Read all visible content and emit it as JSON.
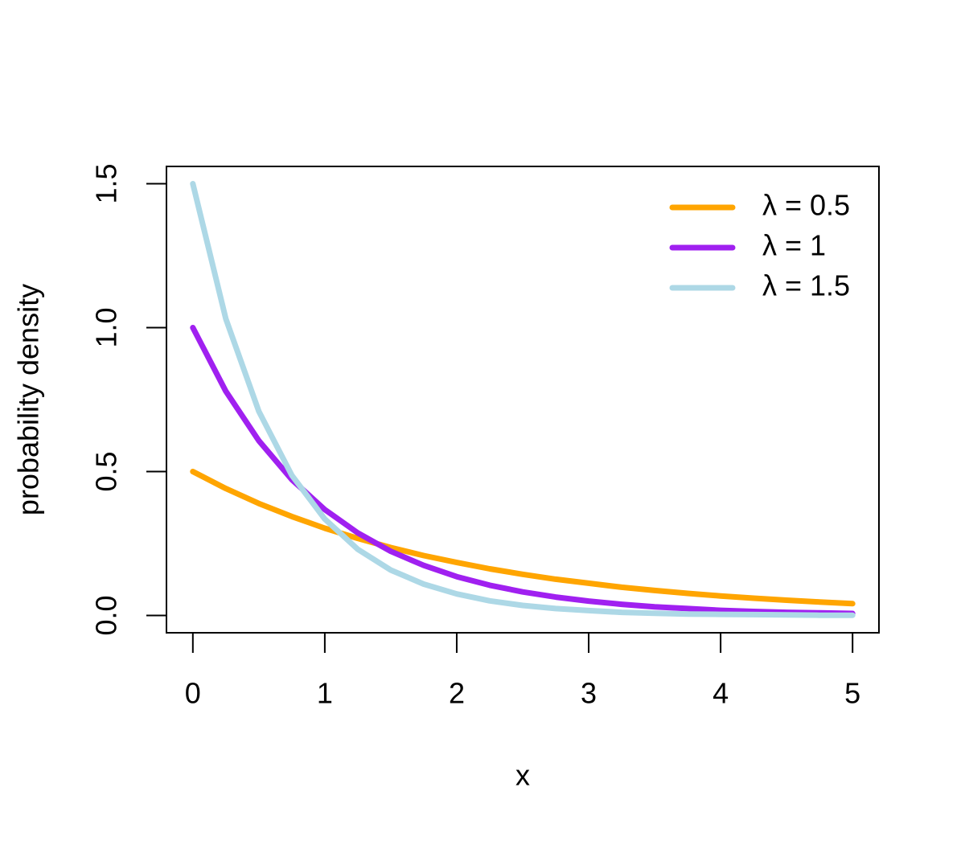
{
  "chart_data": {
    "type": "line",
    "x_label": "x",
    "y_label": "probability density",
    "x": [
      0,
      0.25,
      0.5,
      0.75,
      1,
      1.25,
      1.5,
      1.75,
      2,
      2.25,
      2.5,
      2.75,
      3,
      3.25,
      3.5,
      3.75,
      4,
      4.25,
      4.5,
      4.75,
      5
    ],
    "series": [
      {
        "name": "λ = 0.5",
        "color": "#ffa500",
        "values": [
          0.5,
          0.441,
          0.389,
          0.344,
          0.303,
          0.268,
          0.236,
          0.208,
          0.184,
          0.162,
          0.143,
          0.126,
          0.112,
          0.098,
          0.087,
          0.077,
          0.068,
          0.06,
          0.053,
          0.047,
          0.041
        ]
      },
      {
        "name": "λ = 1",
        "color": "#a020f0",
        "values": [
          1,
          0.779,
          0.607,
          0.472,
          0.368,
          0.287,
          0.223,
          0.174,
          0.135,
          0.105,
          0.082,
          0.064,
          0.05,
          0.039,
          0.03,
          0.024,
          0.018,
          0.014,
          0.011,
          0.009,
          0.007
        ]
      },
      {
        "name": "λ = 1.5",
        "color": "#add8e6",
        "values": [
          1.5,
          1.031,
          0.709,
          0.487,
          0.335,
          0.23,
          0.158,
          0.109,
          0.075,
          0.051,
          0.035,
          0.024,
          0.017,
          0.011,
          0.008,
          0.005,
          0.004,
          0.003,
          0.002,
          0.001,
          0.001
        ]
      }
    ],
    "xlim": [
      -0.2,
      5.2
    ],
    "ylim": [
      -0.06,
      1.56
    ],
    "xticks": [
      0,
      1,
      2,
      3,
      4,
      5
    ],
    "yticks": [
      {
        "value": 0,
        "label": "0.0"
      },
      0.5,
      {
        "value": 1,
        "label": "1.0"
      },
      1.5
    ],
    "legend": "top-right",
    "grid": false
  }
}
